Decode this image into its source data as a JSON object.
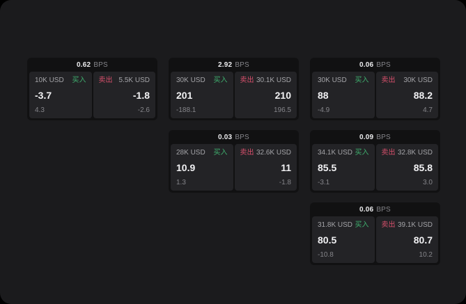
{
  "labels": {
    "bps": "BPS",
    "buy": "买入",
    "sell": "卖出"
  },
  "colors": {
    "page_bg": "#1b1b1d",
    "card_bg": "#111112",
    "panel_bg": "#232326",
    "buy_green": "#3faf6e",
    "sell_red": "#d8506c",
    "muted": "#85858a"
  },
  "cards": [
    {
      "bps": "0.62",
      "buy": {
        "size": "10K USD",
        "value": "-3.7",
        "sub": "4.3"
      },
      "sell": {
        "size": "5.5K USD",
        "value": "-1.8",
        "sub": "-2.6"
      }
    },
    {
      "bps": "2.92",
      "buy": {
        "size": "30K USD",
        "value": "201",
        "sub": "-188.1"
      },
      "sell": {
        "size": "30.1K USD",
        "value": "210",
        "sub": "196.5"
      }
    },
    {
      "bps": "0.06",
      "buy": {
        "size": "30K USD",
        "value": "88",
        "sub": "-4.9"
      },
      "sell": {
        "size": "30K USD",
        "value": "88.2",
        "sub": "4.7"
      }
    },
    {
      "bps": "0.03",
      "buy": {
        "size": "28K USD",
        "value": "10.9",
        "sub": "1.3"
      },
      "sell": {
        "size": "32.6K USD",
        "value": "11",
        "sub": "-1.8"
      }
    },
    {
      "bps": "0.09",
      "buy": {
        "size": "34.1K USD",
        "value": "85.5",
        "sub": "-3.1"
      },
      "sell": {
        "size": "32.8K USD",
        "value": "85.8",
        "sub": "3.0"
      }
    },
    {
      "bps": "0.06",
      "buy": {
        "size": "31.8K USD",
        "value": "80.5",
        "sub": "-10.8"
      },
      "sell": {
        "size": "39.1K USD",
        "value": "80.7",
        "sub": "10.2"
      }
    }
  ]
}
